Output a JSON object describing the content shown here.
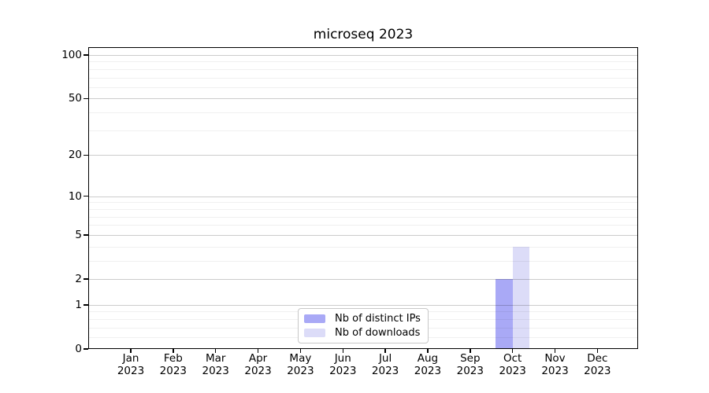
{
  "chart_data": {
    "type": "bar",
    "title": "microseq 2023",
    "xlabel": "",
    "ylabel": "",
    "x": {
      "months": [
        "Jan",
        "Feb",
        "Mar",
        "Apr",
        "May",
        "Jun",
        "Jul",
        "Aug",
        "Sep",
        "Oct",
        "Nov",
        "Dec"
      ],
      "year": "2023"
    },
    "series": [
      {
        "name": "Nb of distinct IPs",
        "color": "#a9a9f6",
        "values": [
          0,
          0,
          0,
          0,
          0,
          0,
          0,
          0,
          0,
          2,
          0,
          0
        ]
      },
      {
        "name": "Nb of downloads",
        "color": "#dcdcf8",
        "values": [
          0,
          0,
          0,
          0,
          0,
          0,
          0,
          0,
          0,
          4,
          0,
          0
        ]
      }
    ],
    "y_axis": {
      "scale": "log1p",
      "ylim": [
        0,
        113
      ],
      "major_ticks": [
        100,
        50,
        20,
        10,
        5,
        2,
        1,
        0
      ],
      "minor_gridlines": [
        0.2,
        0.4,
        0.6,
        0.8,
        3,
        4,
        6,
        7,
        8,
        9,
        30,
        40,
        60,
        70,
        80,
        90
      ]
    },
    "grid": true,
    "legend_position": "lower center"
  },
  "colors": {
    "background": "#ffffff",
    "spine": "#000000",
    "text": "#000000",
    "legend_border": "#c8c8c8"
  }
}
